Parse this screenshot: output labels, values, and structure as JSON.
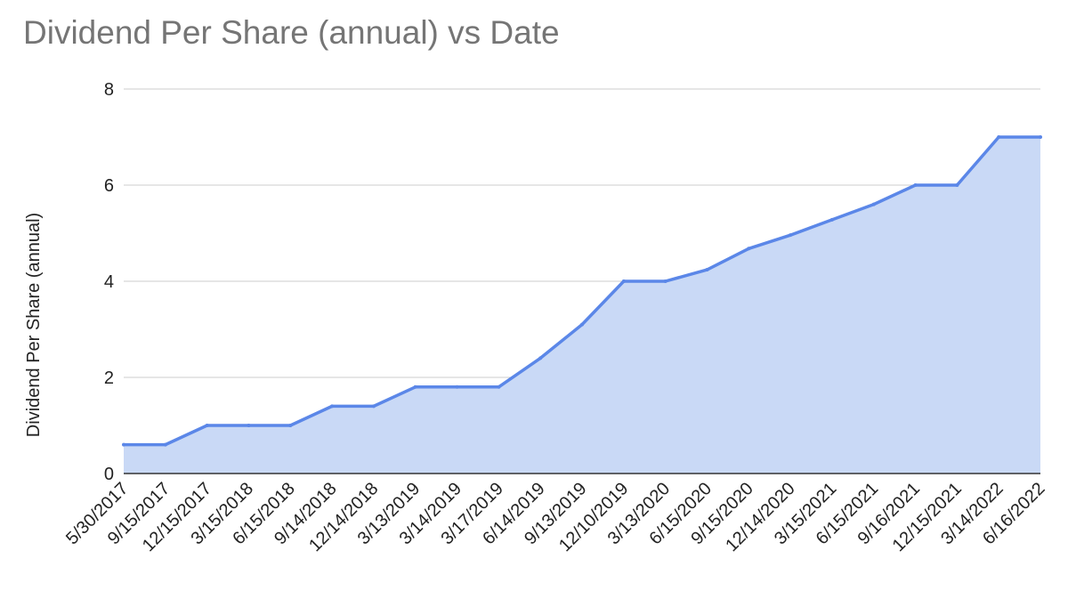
{
  "chart_data": {
    "type": "area",
    "title": "Dividend Per Share (annual) vs Date",
    "xlabel": "",
    "ylabel": "Dividend Per Share (annual)",
    "ylim": [
      0,
      8
    ],
    "yticks": [
      0,
      2,
      4,
      6,
      8
    ],
    "grid": true,
    "legend": "none",
    "colors": {
      "line": "#5b87e8",
      "fill": "#c9d9f6",
      "grid": "#cccccc",
      "axis": "#333333"
    },
    "x_tick_labels": [
      "5/30/2017",
      "9/15/2017",
      "12/15/2017",
      "3/15/2018",
      "6/15/2018",
      "9/14/2018",
      "12/14/2018",
      "3/13/2019",
      "3/14/2019",
      "3/17/2019",
      "6/14/2019",
      "9/13/2019",
      "12/10/2019",
      "3/13/2020",
      "6/15/2020",
      "9/15/2020",
      "12/14/2020",
      "3/15/2021",
      "6/15/2021",
      "9/16/2021",
      "12/15/2021",
      "3/14/2022",
      "6/16/2022"
    ],
    "series": [
      {
        "x": [
          "5/30/2017",
          "9/15/2017",
          "12/15/2017",
          "3/15/2018",
          "6/15/2018",
          "9/14/2018",
          "12/14/2018",
          "3/13/2019",
          "3/14/2019",
          "3/17/2019",
          "6/14/2019",
          "9/13/2019",
          "12/10/2019",
          "3/13/2020",
          "6/15/2020",
          "9/15/2020",
          "12/14/2020",
          "3/15/2021",
          "6/15/2021",
          "9/16/2021",
          "12/15/2021",
          "3/14/2022",
          "6/16/2022"
        ],
        "values": [
          0.6,
          0.6,
          1.0,
          1.0,
          1.0,
          1.4,
          1.4,
          1.8,
          1.8,
          1.8,
          2.4,
          3.1,
          4.0,
          4.0,
          4.24,
          4.68,
          4.96,
          5.28,
          5.6,
          6.0,
          6.0,
          7.0,
          7.0
        ]
      }
    ]
  }
}
